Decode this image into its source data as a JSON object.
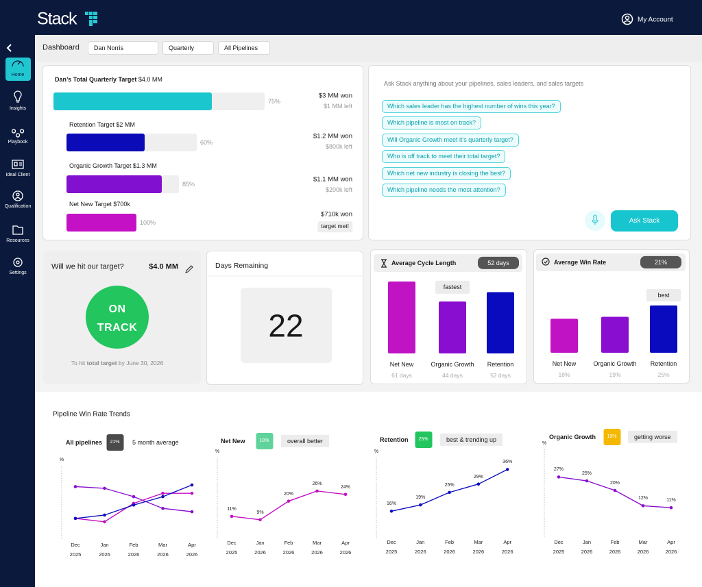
{
  "header": {
    "logo": "Stack",
    "account": "My Account"
  },
  "sidebar": {
    "items": [
      "Home",
      "Insights",
      "Playbook",
      "Ideal Client",
      "Qualification",
      "Resources",
      "Settings"
    ]
  },
  "toolbar": {
    "title": "Dashboard",
    "filters": [
      "Dan Norris",
      "Quarterly",
      "All Pipelines"
    ]
  },
  "targets": {
    "title": "Dan’s Total Quarterly Target",
    "title_amount": "$4.0 MM",
    "rows": [
      {
        "percent": 75,
        "percent_label": "75%",
        "color": "#1cc6cf",
        "won": "$3 MM won",
        "left": "$1 MM left"
      },
      {
        "label": "Retention Target $2 MM",
        "percent": 60,
        "percent_label": "60%",
        "color": "#0b0bb8",
        "won": "$1.2 MM won",
        "left": "$800k left"
      },
      {
        "label": "Organic Growth Target $1.3 MM",
        "percent": 85,
        "percent_label": "85%",
        "color": "#8210d0",
        "won": "$1.1 MM won",
        "left": "$200k left"
      },
      {
        "label": "Net New Target $700k",
        "percent": 100,
        "percent_label": "100%",
        "color": "#c511c6",
        "won": "$710k won",
        "status": "target met!"
      }
    ]
  },
  "ask": {
    "prompt": "Ask Stack anything about your pipelines, sales leaders, and sales targets",
    "questions": [
      "Which sales leader has the highest number of wins this year?",
      "Which pipeline is most on track?",
      "Will Organic Growth meet it's quarterly target?",
      "Who is off track to meet their total target?",
      "Which net new industry is closing the best?",
      "Which pipeline needs the most attention?"
    ],
    "button": "Ask Stack"
  },
  "status": {
    "question": "Will we hit our target?",
    "amount": "$4.0 MM",
    "status": "ON TRACK",
    "footer_prefix": "To hit",
    "footer_bold": "total target",
    "footer_suffix": "by June 30, 2026"
  },
  "days": {
    "title": "Days Remaining",
    "value": 22
  },
  "cycle": {
    "type": "bar",
    "title": "Average Cycle Length",
    "badge": "52 days",
    "categories": [
      "Net New",
      "Organic Growth",
      "Retention"
    ],
    "values": [
      61,
      44,
      52
    ],
    "value_labels": [
      "61 days",
      "44 days",
      "52 days"
    ],
    "colors": [
      "#c013c4",
      "#8a0ed0",
      "#0a0abf"
    ],
    "annotations": [
      null,
      "fastest",
      null
    ]
  },
  "win_rate": {
    "type": "bar",
    "title": "Average Win Rate",
    "badge": "21%",
    "categories": [
      "Net New",
      "Organic Growth",
      "Retention"
    ],
    "values": [
      18,
      19,
      25
    ],
    "value_labels": [
      "18%",
      "19%",
      "25%"
    ],
    "colors": [
      "#c013c4",
      "#8a0ed0",
      "#0a0abf"
    ],
    "annotations": [
      null,
      null,
      "best"
    ]
  },
  "trends": {
    "title": "Pipeline Win Rate Trends",
    "charts": [
      {
        "type": "line",
        "title": "All pipelines",
        "badge": "21%",
        "badge_color": "#4a4a4a",
        "note": "5 month average",
        "y_label": "%",
        "ylim": [
          0,
          45
        ],
        "x": [
          "Dec 2025",
          "Jan 2026",
          "Feb 2026",
          "Mar 2026",
          "Apr 2026"
        ],
        "series": [
          {
            "color": "#8a10d0",
            "values": [
              35,
              34,
              29,
              22,
              20
            ]
          },
          {
            "color": "#c40fc4",
            "values": [
              16,
              14,
              25,
              31,
              31
            ]
          },
          {
            "color": "#1010c0",
            "values": [
              16,
              18,
              24,
              29,
              36
            ]
          }
        ]
      },
      {
        "type": "line",
        "title": "Net New",
        "badge": "18%",
        "badge_color": "#5fd39b",
        "note": "overall better",
        "y_label": "%",
        "ylim": [
          0,
          45
        ],
        "x": [
          "Dec 2025",
          "Jan 2026",
          "Feb 2026",
          "Mar 2026",
          "Apr 2026"
        ],
        "series": [
          {
            "color": "#c40fc4",
            "values": [
              11,
              9,
              20,
              26,
              24
            ],
            "value_labels": [
              "11%",
              "9%",
              "20%",
              "26%",
              "24%"
            ]
          }
        ]
      },
      {
        "type": "line",
        "title": "Retention",
        "badge": "25%",
        "badge_color": "#22c55e",
        "note": "best & trending up",
        "y_label": "%",
        "ylim": [
          0,
          45
        ],
        "x": [
          "Dec 2025",
          "Jan 2026",
          "Feb 2026",
          "Mar 2026",
          "Apr 2026"
        ],
        "series": [
          {
            "color": "#1010c0",
            "values": [
              16,
              19,
              25,
              29,
              36
            ],
            "value_labels": [
              "16%",
              "19%",
              "25%",
              "29%",
              "36%"
            ]
          }
        ]
      },
      {
        "type": "line",
        "title": "Organic Growth",
        "badge": "19%",
        "badge_color": "#f5b800",
        "note": "getting worse",
        "y_label": "%",
        "ylim": [
          0,
          45
        ],
        "x": [
          "Dec 2025",
          "Jan 2026",
          "Feb 2026",
          "Mar 2026",
          "Apr 2026"
        ],
        "series": [
          {
            "color": "#8a10d0",
            "values": [
              27,
              25,
              20,
              12,
              11
            ],
            "value_labels": [
              "27%",
              "25%",
              "20%",
              "12%",
              "11%"
            ]
          }
        ]
      }
    ]
  }
}
